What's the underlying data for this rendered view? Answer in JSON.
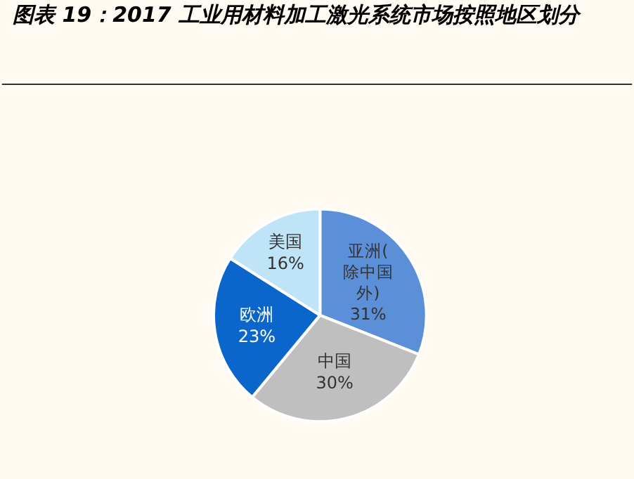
{
  "chart_data": {
    "type": "pie",
    "title": "图表 19：2017 工业用材料加工激光系统市场按照地区划分",
    "categories": [
      "亚洲(除中国外)",
      "中国",
      "欧洲",
      "美国"
    ],
    "values": [
      31,
      30,
      23,
      16
    ],
    "value_labels": [
      "31%",
      "30%",
      "23%",
      "16%"
    ],
    "colors": [
      "#5b8fd8",
      "#bfbfbf",
      "#0b66cc",
      "#bfe4f8"
    ],
    "legend": false
  }
}
